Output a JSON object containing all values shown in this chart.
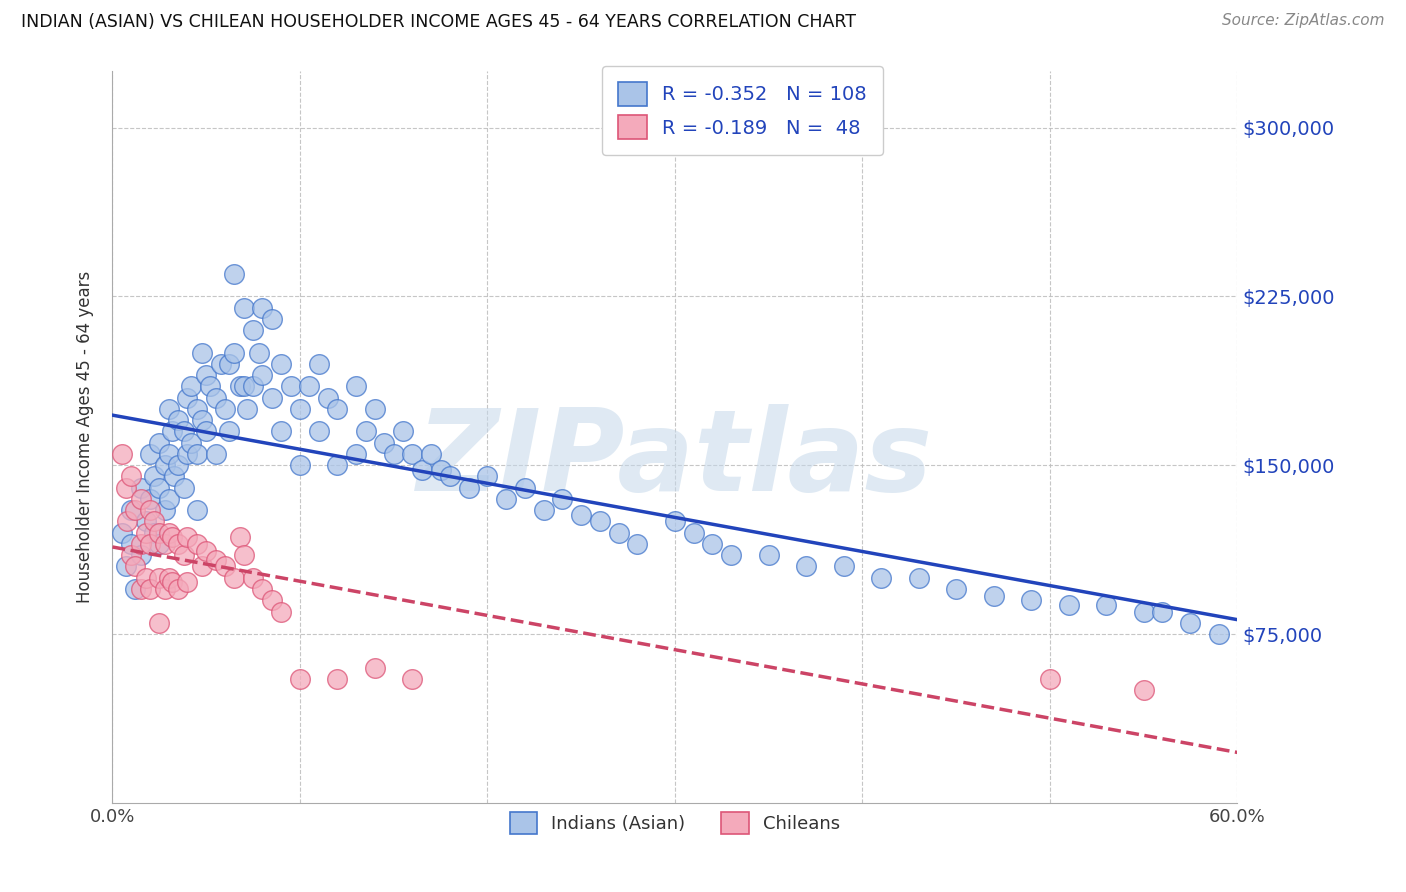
{
  "title": "INDIAN (ASIAN) VS CHILEAN HOUSEHOLDER INCOME AGES 45 - 64 YEARS CORRELATION CHART",
  "source": "Source: ZipAtlas.com",
  "ylabel": "Householder Income Ages 45 - 64 years",
  "xlim": [
    0.0,
    0.6
  ],
  "ylim": [
    0,
    325000
  ],
  "ytick_positions": [
    75000,
    150000,
    225000,
    300000
  ],
  "ytick_labels": [
    "$75,000",
    "$150,000",
    "$225,000",
    "$300,000"
  ],
  "legend_R_indian": "-0.352",
  "legend_N_indian": "108",
  "legend_R_chilean": "-0.189",
  "legend_N_chilean": "48",
  "indian_color": "#aac4e8",
  "indian_edge": "#4477cc",
  "chilean_color": "#f4aabb",
  "chilean_edge": "#dd5577",
  "indian_line_color": "#2244bb",
  "chilean_line_color": "#cc4466",
  "watermark": "ZIPatlas",
  "watermark_color": "#c5d8ea",
  "background_color": "#ffffff",
  "grid_color": "#c0c0c0",
  "indian_x": [
    0.005,
    0.007,
    0.01,
    0.01,
    0.012,
    0.015,
    0.015,
    0.018,
    0.02,
    0.02,
    0.022,
    0.022,
    0.025,
    0.025,
    0.025,
    0.028,
    0.028,
    0.03,
    0.03,
    0.03,
    0.032,
    0.033,
    0.035,
    0.035,
    0.038,
    0.038,
    0.04,
    0.04,
    0.042,
    0.042,
    0.045,
    0.045,
    0.045,
    0.048,
    0.048,
    0.05,
    0.05,
    0.052,
    0.055,
    0.055,
    0.058,
    0.06,
    0.062,
    0.062,
    0.065,
    0.065,
    0.068,
    0.07,
    0.07,
    0.072,
    0.075,
    0.075,
    0.078,
    0.08,
    0.08,
    0.085,
    0.085,
    0.09,
    0.09,
    0.095,
    0.1,
    0.1,
    0.105,
    0.11,
    0.11,
    0.115,
    0.12,
    0.12,
    0.13,
    0.13,
    0.135,
    0.14,
    0.145,
    0.15,
    0.155,
    0.16,
    0.165,
    0.17,
    0.175,
    0.18,
    0.19,
    0.2,
    0.21,
    0.22,
    0.23,
    0.24,
    0.25,
    0.26,
    0.27,
    0.28,
    0.3,
    0.31,
    0.32,
    0.33,
    0.35,
    0.37,
    0.39,
    0.41,
    0.43,
    0.45,
    0.47,
    0.49,
    0.51,
    0.53,
    0.55,
    0.56,
    0.575,
    0.59
  ],
  "indian_y": [
    120000,
    105000,
    130000,
    115000,
    95000,
    140000,
    110000,
    125000,
    155000,
    135000,
    145000,
    120000,
    160000,
    140000,
    115000,
    150000,
    130000,
    175000,
    155000,
    135000,
    165000,
    145000,
    170000,
    150000,
    165000,
    140000,
    180000,
    155000,
    185000,
    160000,
    175000,
    155000,
    130000,
    200000,
    170000,
    190000,
    165000,
    185000,
    180000,
    155000,
    195000,
    175000,
    195000,
    165000,
    235000,
    200000,
    185000,
    220000,
    185000,
    175000,
    210000,
    185000,
    200000,
    220000,
    190000,
    215000,
    180000,
    195000,
    165000,
    185000,
    175000,
    150000,
    185000,
    195000,
    165000,
    180000,
    175000,
    150000,
    185000,
    155000,
    165000,
    175000,
    160000,
    155000,
    165000,
    155000,
    148000,
    155000,
    148000,
    145000,
    140000,
    145000,
    135000,
    140000,
    130000,
    135000,
    128000,
    125000,
    120000,
    115000,
    125000,
    120000,
    115000,
    110000,
    110000,
    105000,
    105000,
    100000,
    100000,
    95000,
    92000,
    90000,
    88000,
    88000,
    85000,
    85000,
    80000,
    75000
  ],
  "chilean_x": [
    0.005,
    0.007,
    0.008,
    0.01,
    0.01,
    0.012,
    0.012,
    0.015,
    0.015,
    0.015,
    0.018,
    0.018,
    0.02,
    0.02,
    0.02,
    0.022,
    0.025,
    0.025,
    0.025,
    0.028,
    0.028,
    0.03,
    0.03,
    0.032,
    0.032,
    0.035,
    0.035,
    0.038,
    0.04,
    0.04,
    0.045,
    0.048,
    0.05,
    0.055,
    0.06,
    0.065,
    0.068,
    0.07,
    0.075,
    0.08,
    0.085,
    0.09,
    0.1,
    0.12,
    0.14,
    0.16,
    0.5,
    0.55
  ],
  "chilean_y": [
    155000,
    140000,
    125000,
    145000,
    110000,
    130000,
    105000,
    135000,
    115000,
    95000,
    120000,
    100000,
    130000,
    115000,
    95000,
    125000,
    120000,
    100000,
    80000,
    115000,
    95000,
    120000,
    100000,
    118000,
    98000,
    115000,
    95000,
    110000,
    118000,
    98000,
    115000,
    105000,
    112000,
    108000,
    105000,
    100000,
    118000,
    110000,
    100000,
    95000,
    90000,
    85000,
    55000,
    55000,
    60000,
    55000,
    55000,
    50000
  ]
}
